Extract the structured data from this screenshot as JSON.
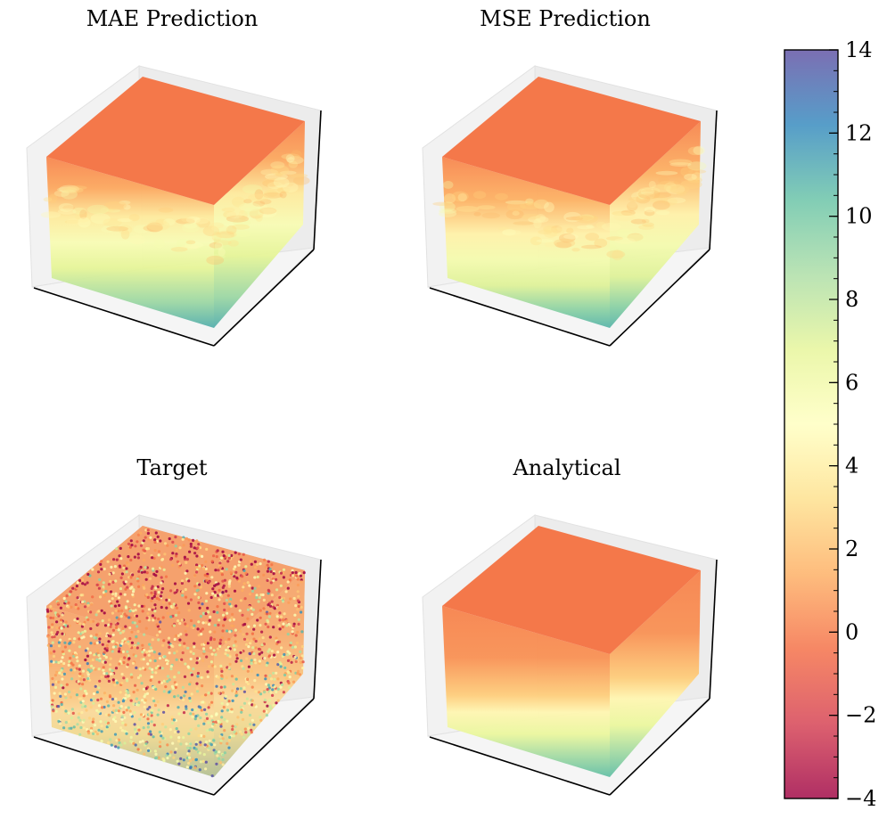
{
  "chart_data": {
    "type": "3d-scatter-volume",
    "panels": [
      {
        "title": "MAE Prediction",
        "kind": "smooth-noisy"
      },
      {
        "title": "MSE Prediction",
        "kind": "smooth-noisy-2"
      },
      {
        "title": "Target",
        "kind": "noisy"
      },
      {
        "title": "Analytical",
        "kind": "smooth"
      }
    ],
    "colorbar": {
      "colormap": "Spectral",
      "range": [
        -4,
        14
      ],
      "major_ticks": [
        -4,
        -2,
        0,
        2,
        4,
        6,
        8,
        10,
        12,
        14
      ],
      "tick_labels": [
        "−4",
        "−2",
        "0",
        "2",
        "4",
        "6",
        "8",
        "10",
        "12",
        "14"
      ],
      "minor_step": 0.5
    },
    "colors": {
      "surface_top": "#f4784a",
      "pane": "#eeeeee",
      "axis": "#000000"
    }
  }
}
